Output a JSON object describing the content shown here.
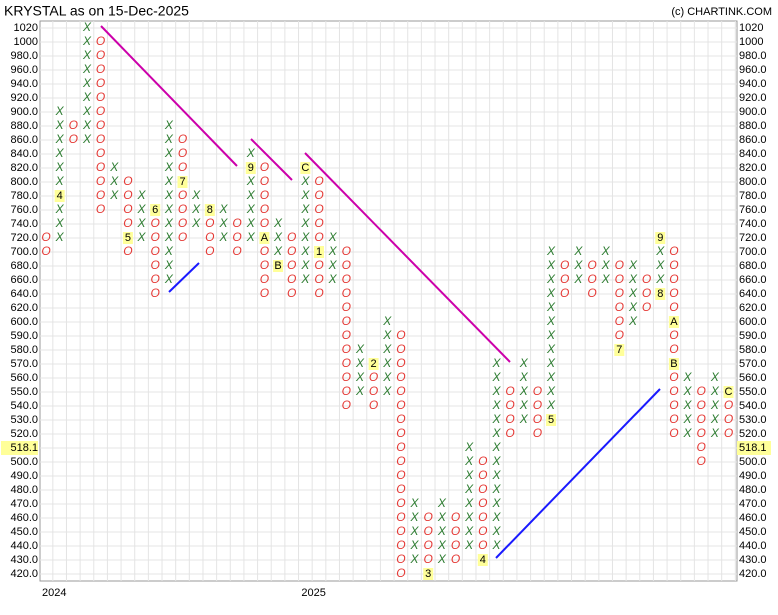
{
  "chart_data": {
    "type": "point_and_figure",
    "title": "KRYSTAL as on 15-Dec-2025",
    "source": "(c) CHARTINK.COM",
    "x_color": "#2e7d32",
    "o_color": "#e53935",
    "label_bg": "#ffff99",
    "last_price": 518.1,
    "yticks": [
      1020,
      1000,
      {
        "value": 980,
        "label": "980.0"
      },
      {
        "value": 960,
        "label": "960.0"
      },
      {
        "value": 940,
        "label": "940.0"
      },
      {
        "value": 920,
        "label": "920.0"
      },
      {
        "value": 900,
        "label": "900.0"
      },
      {
        "value": 880,
        "label": "880.0"
      },
      {
        "value": 860,
        "label": "860.0"
      },
      {
        "value": 840,
        "label": "840.0"
      },
      {
        "value": 820,
        "label": "820.0"
      },
      {
        "value": 800,
        "label": "800.0"
      },
      {
        "value": 780,
        "label": "780.0"
      },
      {
        "value": 760,
        "label": "760.0"
      },
      {
        "value": 740,
        "label": "740.0"
      },
      {
        "value": 720,
        "label": "720.0"
      },
      {
        "value": 700,
        "label": "700.0"
      },
      {
        "value": 680,
        "label": "680.0"
      },
      {
        "value": 660,
        "label": "660.0"
      },
      {
        "value": 640,
        "label": "640.0"
      },
      {
        "value": 620,
        "label": "620.0"
      },
      {
        "value": 600,
        "label": "600.0"
      },
      {
        "value": 590,
        "label": "590.0"
      },
      {
        "value": 580,
        "label": "580.0"
      },
      {
        "value": 570,
        "label": "570.0"
      },
      {
        "value": 560,
        "label": "560.0"
      },
      {
        "value": 550,
        "label": "550.0"
      },
      {
        "value": 540,
        "label": "540.0"
      },
      {
        "value": 530,
        "label": "530.0"
      },
      {
        "value": 520,
        "label": "520.0"
      },
      518.1,
      {
        "value": 500,
        "label": "500.0"
      },
      {
        "value": 490,
        "label": "490.0"
      },
      {
        "value": 480,
        "label": "480.0"
      },
      {
        "value": 470,
        "label": "470.0"
      },
      {
        "value": 460,
        "label": "460.0"
      },
      {
        "value": 450,
        "label": "450.0"
      },
      {
        "value": 440,
        "label": "440.0"
      },
      {
        "value": 430,
        "label": "430.0"
      },
      {
        "value": 420,
        "label": "420.0"
      }
    ],
    "xticks": [
      {
        "value": 0,
        "label": "2024"
      },
      {
        "value": 19,
        "label": "2025"
      }
    ],
    "columns": [
      {
        "type": "O",
        "high": 720,
        "low": 700,
        "labels": []
      },
      {
        "type": "X",
        "high": 900,
        "low": 720,
        "labels": [
          {
            "price": 780,
            "label": "4"
          }
        ]
      },
      {
        "type": "O",
        "high": 880,
        "low": 860,
        "labels": []
      },
      {
        "type": "X",
        "high": 1020,
        "low": 860,
        "labels": []
      },
      {
        "type": "O",
        "high": 1000,
        "low": 760,
        "labels": []
      },
      {
        "type": "X",
        "high": 820,
        "low": 780,
        "labels": []
      },
      {
        "type": "O",
        "high": 800,
        "low": 700,
        "labels": [
          {
            "price": 720,
            "label": "5"
          }
        ]
      },
      {
        "type": "X",
        "high": 780,
        "low": 720,
        "labels": []
      },
      {
        "type": "O",
        "high": 760,
        "low": 640,
        "labels": [
          {
            "price": 760,
            "label": "6"
          }
        ]
      },
      {
        "type": "X",
        "high": 880,
        "low": 660,
        "labels": []
      },
      {
        "type": "O",
        "high": 860,
        "low": 720,
        "labels": [
          {
            "price": 800,
            "label": "7"
          }
        ]
      },
      {
        "type": "X",
        "high": 780,
        "low": 740,
        "labels": []
      },
      {
        "type": "O",
        "high": 760,
        "low": 700,
        "labels": [
          {
            "price": 760,
            "label": "8"
          }
        ]
      },
      {
        "type": "X",
        "high": 760,
        "low": 720,
        "labels": []
      },
      {
        "type": "O",
        "high": 740,
        "low": 700,
        "labels": []
      },
      {
        "type": "X",
        "high": 840,
        "low": 720,
        "labels": [
          {
            "price": 820,
            "label": "9"
          }
        ]
      },
      {
        "type": "O",
        "high": 820,
        "low": 640,
        "labels": [
          {
            "price": 720,
            "label": "A"
          }
        ]
      },
      {
        "type": "X",
        "high": 740,
        "low": 680,
        "labels": [
          {
            "price": 680,
            "label": "B"
          }
        ]
      },
      {
        "type": "O",
        "high": 720,
        "low": 640,
        "labels": []
      },
      {
        "type": "X",
        "high": 820,
        "low": 660,
        "labels": [
          {
            "price": 820,
            "label": "C"
          }
        ]
      },
      {
        "type": "O",
        "high": 800,
        "low": 640,
        "labels": [
          {
            "price": 700,
            "label": "1"
          }
        ]
      },
      {
        "type": "X",
        "high": 720,
        "low": 660,
        "labels": []
      },
      {
        "type": "O",
        "high": 700,
        "low": 540,
        "labels": []
      },
      {
        "type": "X",
        "high": 580,
        "low": 550,
        "labels": []
      },
      {
        "type": "O",
        "high": 570,
        "low": 540,
        "labels": [
          {
            "price": 570,
            "label": "2"
          }
        ]
      },
      {
        "type": "X",
        "high": 600,
        "low": 550,
        "labels": []
      },
      {
        "type": "O",
        "high": 590,
        "low": 420,
        "labels": []
      },
      {
        "type": "X",
        "high": 470,
        "low": 430,
        "labels": []
      },
      {
        "type": "O",
        "high": 460,
        "low": 420,
        "labels": [
          {
            "price": 420,
            "label": "3"
          }
        ]
      },
      {
        "type": "X",
        "high": 470,
        "low": 430,
        "labels": []
      },
      {
        "type": "O",
        "high": 460,
        "low": 430,
        "labels": []
      },
      {
        "type": "X",
        "high": 510,
        "low": 440,
        "labels": []
      },
      {
        "type": "O",
        "high": 500,
        "low": 430,
        "labels": [
          {
            "price": 430,
            "label": "4"
          }
        ]
      },
      {
        "type": "X",
        "high": 570,
        "low": 440,
        "labels": []
      },
      {
        "type": "O",
        "high": 550,
        "low": 520,
        "labels": []
      },
      {
        "type": "X",
        "high": 570,
        "low": 530,
        "labels": []
      },
      {
        "type": "O",
        "high": 550,
        "low": 520,
        "labels": []
      },
      {
        "type": "X",
        "high": 700,
        "low": 530,
        "labels": [
          {
            "price": 530,
            "label": "5"
          }
        ]
      },
      {
        "type": "O",
        "high": 680,
        "low": 640,
        "labels": []
      },
      {
        "type": "X",
        "high": 700,
        "low": 660,
        "labels": []
      },
      {
        "type": "O",
        "high": 680,
        "low": 640,
        "labels": []
      },
      {
        "type": "X",
        "high": 700,
        "low": 660,
        "labels": []
      },
      {
        "type": "O",
        "high": 680,
        "low": 580,
        "labels": [
          {
            "price": 580,
            "label": "7"
          }
        ]
      },
      {
        "type": "X",
        "high": 680,
        "low": 600,
        "labels": []
      },
      {
        "type": "O",
        "high": 660,
        "low": 620,
        "labels": []
      },
      {
        "type": "X",
        "high": 720,
        "low": 640,
        "labels": [
          {
            "price": 640,
            "label": "8"
          },
          {
            "price": 720,
            "label": "9"
          }
        ]
      },
      {
        "type": "O",
        "high": 700,
        "low": 520,
        "labels": [
          {
            "price": 600,
            "label": "A"
          },
          {
            "price": 570,
            "label": "B"
          }
        ]
      },
      {
        "type": "X",
        "high": 560,
        "low": 520,
        "labels": []
      },
      {
        "type": "O",
        "high": 550,
        "low": 500,
        "labels": []
      },
      {
        "type": "X",
        "high": 560,
        "low": 520,
        "labels": []
      },
      {
        "type": "O",
        "high": 550,
        "low": 520,
        "labels": [
          {
            "price": 550,
            "label": "C"
          }
        ]
      }
    ]
  }
}
